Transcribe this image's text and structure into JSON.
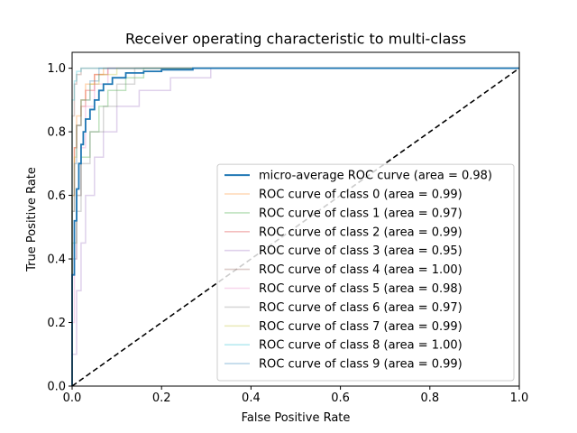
{
  "chart_data": {
    "type": "line",
    "title": "Receiver operating characteristic to multi-class",
    "xlabel": "False Positive Rate",
    "ylabel": "True Positive Rate",
    "xlim": [
      0.0,
      1.0
    ],
    "ylim": [
      0.0,
      1.05
    ],
    "xticks": [
      "0.0",
      "0.2",
      "0.4",
      "0.6",
      "0.8",
      "1.0"
    ],
    "yticks": [
      "0.0",
      "0.2",
      "0.4",
      "0.6",
      "0.8",
      "1.0"
    ],
    "grid": false,
    "legend_position": "lower-right",
    "diagonal": {
      "x": [
        0,
        1
      ],
      "y": [
        0,
        1
      ],
      "color": "#000000",
      "style": "dashed"
    },
    "series": [
      {
        "name": "micro-average ROC curve (area = 0.98)",
        "color": "#1f77b4",
        "alpha": 1.0,
        "x": [
          0.0,
          0.0,
          0.005,
          0.005,
          0.01,
          0.01,
          0.015,
          0.015,
          0.02,
          0.02,
          0.025,
          0.025,
          0.03,
          0.03,
          0.04,
          0.04,
          0.05,
          0.05,
          0.06,
          0.06,
          0.07,
          0.07,
          0.09,
          0.09,
          0.12,
          0.12,
          0.16,
          0.16,
          0.2,
          0.2,
          0.27,
          0.27,
          1.0
        ],
        "y": [
          0.0,
          0.35,
          0.35,
          0.52,
          0.52,
          0.62,
          0.62,
          0.7,
          0.7,
          0.76,
          0.76,
          0.8,
          0.8,
          0.84,
          0.84,
          0.87,
          0.87,
          0.9,
          0.9,
          0.93,
          0.93,
          0.95,
          0.95,
          0.97,
          0.97,
          0.985,
          0.985,
          0.99,
          0.99,
          0.995,
          0.995,
          1.0,
          1.0
        ]
      },
      {
        "name": "ROC curve of class 0 (area = 0.99)",
        "color": "#ff7f0e",
        "alpha": 0.3,
        "x": [
          0.0,
          0.0,
          0.005,
          0.005,
          0.01,
          0.01,
          0.02,
          0.02,
          0.03,
          0.03,
          0.05,
          0.05,
          0.07,
          0.07,
          1.0
        ],
        "y": [
          0.0,
          0.55,
          0.55,
          0.75,
          0.75,
          0.85,
          0.85,
          0.9,
          0.9,
          0.95,
          0.95,
          0.98,
          0.98,
          1.0,
          1.0
        ]
      },
      {
        "name": "ROC curve of class 1 (area = 0.97)",
        "color": "#2ca02c",
        "alpha": 0.3,
        "x": [
          0.0,
          0.0,
          0.01,
          0.01,
          0.02,
          0.02,
          0.04,
          0.04,
          0.06,
          0.06,
          0.08,
          0.08,
          0.12,
          0.12,
          0.16,
          0.16,
          1.0
        ],
        "y": [
          0.0,
          0.45,
          0.45,
          0.6,
          0.6,
          0.72,
          0.72,
          0.8,
          0.8,
          0.88,
          0.88,
          0.93,
          0.93,
          0.97,
          0.97,
          1.0,
          1.0
        ]
      },
      {
        "name": "ROC curve of class 2 (area = 0.99)",
        "color": "#d62728",
        "alpha": 0.3,
        "x": [
          0.0,
          0.0,
          0.005,
          0.005,
          0.01,
          0.01,
          0.02,
          0.02,
          0.03,
          0.03,
          0.05,
          0.05,
          0.08,
          0.08,
          1.0
        ],
        "y": [
          0.0,
          0.6,
          0.6,
          0.75,
          0.75,
          0.82,
          0.82,
          0.88,
          0.88,
          0.93,
          0.93,
          0.98,
          0.98,
          1.0,
          1.0
        ]
      },
      {
        "name": "ROC curve of class 3 (area = 0.95)",
        "color": "#9467bd",
        "alpha": 0.3,
        "x": [
          0.0,
          0.0,
          0.01,
          0.01,
          0.02,
          0.02,
          0.03,
          0.03,
          0.05,
          0.05,
          0.07,
          0.07,
          0.1,
          0.1,
          0.15,
          0.15,
          0.22,
          0.22,
          0.31,
          0.31,
          1.0
        ],
        "y": [
          0.0,
          0.1,
          0.1,
          0.3,
          0.3,
          0.45,
          0.45,
          0.6,
          0.6,
          0.72,
          0.72,
          0.8,
          0.8,
          0.88,
          0.88,
          0.93,
          0.93,
          0.97,
          0.97,
          1.0,
          1.0
        ]
      },
      {
        "name": "ROC curve of class 4 (area = 1.00)",
        "color": "#8c564b",
        "alpha": 0.3,
        "x": [
          0.0,
          0.0,
          0.005,
          0.005,
          0.01,
          0.01,
          0.02,
          0.02,
          1.0
        ],
        "y": [
          0.0,
          0.85,
          0.85,
          0.95,
          0.95,
          0.98,
          0.98,
          1.0,
          1.0
        ]
      },
      {
        "name": "ROC curve of class 5 (area = 0.98)",
        "color": "#e377c2",
        "alpha": 0.3,
        "x": [
          0.0,
          0.0,
          0.005,
          0.005,
          0.01,
          0.01,
          0.02,
          0.02,
          0.03,
          0.03,
          0.05,
          0.05,
          0.08,
          0.08,
          1.0
        ],
        "y": [
          0.0,
          0.2,
          0.2,
          0.4,
          0.4,
          0.6,
          0.6,
          0.75,
          0.75,
          0.88,
          0.88,
          0.95,
          0.95,
          1.0,
          1.0
        ]
      },
      {
        "name": "ROC curve of class 6 (area = 0.97)",
        "color": "#7f7f7f",
        "alpha": 0.3,
        "x": [
          0.0,
          0.0,
          0.01,
          0.01,
          0.02,
          0.02,
          0.04,
          0.04,
          0.07,
          0.07,
          0.1,
          0.1,
          0.14,
          0.14,
          1.0
        ],
        "y": [
          0.0,
          0.4,
          0.4,
          0.55,
          0.55,
          0.7,
          0.7,
          0.8,
          0.8,
          0.88,
          0.88,
          0.95,
          0.95,
          1.0,
          1.0
        ]
      },
      {
        "name": "ROC curve of class 7 (area = 0.99)",
        "color": "#bcbd22",
        "alpha": 0.3,
        "x": [
          0.0,
          0.0,
          0.005,
          0.005,
          0.01,
          0.01,
          0.02,
          0.02,
          0.04,
          0.04,
          0.06,
          0.06,
          0.1,
          0.1,
          1.0
        ],
        "y": [
          0.0,
          0.6,
          0.6,
          0.72,
          0.72,
          0.82,
          0.82,
          0.9,
          0.9,
          0.95,
          0.95,
          0.98,
          0.98,
          1.0,
          1.0
        ]
      },
      {
        "name": "ROC curve of class 8 (area = 1.00)",
        "color": "#17becf",
        "alpha": 0.3,
        "x": [
          0.0,
          0.0,
          0.005,
          0.005,
          0.01,
          0.01,
          0.02,
          0.02,
          1.0
        ],
        "y": [
          0.0,
          0.9,
          0.9,
          0.96,
          0.96,
          0.99,
          0.99,
          1.0,
          1.0
        ]
      },
      {
        "name": "ROC curve of class 9 (area = 0.99)",
        "color": "#1f77b4",
        "alpha": 0.3,
        "x": [
          0.0,
          0.0,
          0.005,
          0.005,
          0.01,
          0.01,
          0.02,
          0.02,
          0.04,
          0.04,
          0.06,
          0.06,
          1.0
        ],
        "y": [
          0.0,
          0.55,
          0.55,
          0.7,
          0.7,
          0.82,
          0.82,
          0.9,
          0.9,
          0.96,
          0.96,
          1.0,
          1.0
        ]
      }
    ]
  }
}
